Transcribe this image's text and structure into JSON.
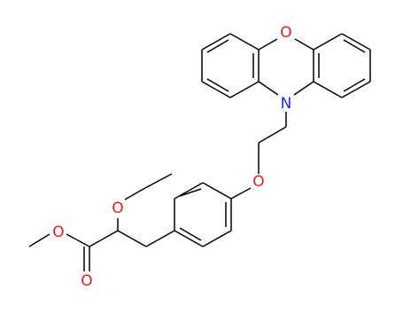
{
  "atoms": [
    {
      "label": "O"
    },
    {
      "label": "N"
    },
    {
      "label": "O"
    },
    {
      "label": "O"
    },
    {
      "label": "O"
    },
    {
      "label": "O"
    }
  ]
}
